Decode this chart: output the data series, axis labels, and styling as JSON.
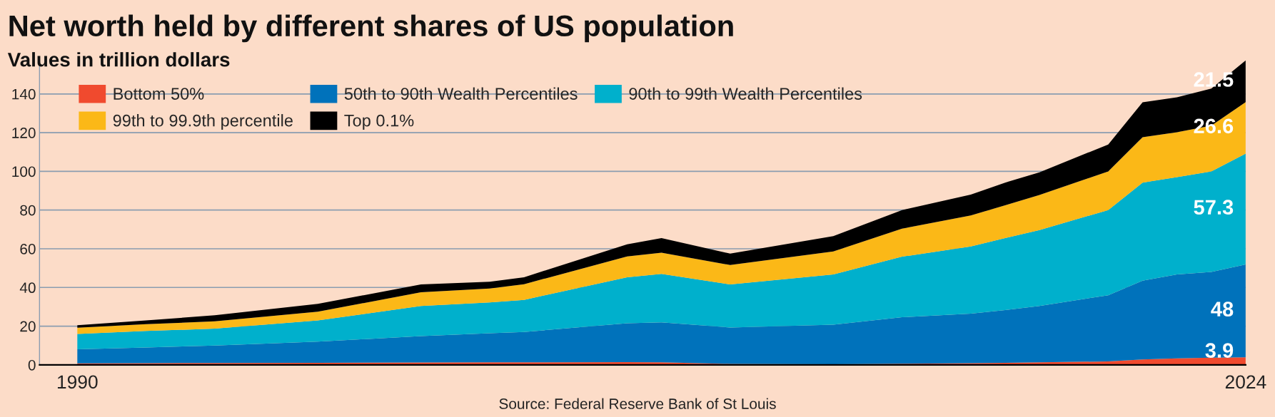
{
  "chart_data": {
    "type": "area",
    "stacked": true,
    "title": "Net worth held by different shares of US population",
    "subtitle": "Values in trillion dollars",
    "x": [
      1990,
      1992,
      1994,
      1997,
      2000,
      2002,
      2003,
      2006,
      2007,
      2009,
      2012,
      2014,
      2016,
      2017,
      2018,
      2020,
      2021,
      2022,
      2023,
      2024
    ],
    "series": [
      {
        "name": "Bottom 50%",
        "color": "#f04a2e",
        "values": [
          0.8,
          0.9,
          1.0,
          1.1,
          1.2,
          1.3,
          1.3,
          1.4,
          1.3,
          0.5,
          0.3,
          0.6,
          0.9,
          1.1,
          1.3,
          1.8,
          2.8,
          3.4,
          3.7,
          3.9
        ],
        "value_labels": [
          null,
          null,
          null,
          null,
          null,
          null,
          null,
          null,
          null,
          null,
          null,
          null,
          null,
          null,
          null,
          null,
          null,
          null,
          null,
          "3.9"
        ]
      },
      {
        "name": "50th to 90th Wealth Percentiles",
        "color": "#0072bb",
        "values": [
          7.3,
          8.1,
          9.0,
          10.9,
          13.7,
          15.0,
          15.7,
          20.1,
          20.7,
          18.8,
          20.5,
          24.0,
          25.6,
          27.2,
          29.1,
          34.2,
          40.7,
          43.3,
          44.3,
          48
        ],
        "value_labels": [
          null,
          null,
          null,
          null,
          null,
          null,
          null,
          null,
          null,
          null,
          null,
          null,
          null,
          null,
          null,
          null,
          null,
          null,
          null,
          "48"
        ]
      },
      {
        "name": "90th to 99th Wealth Percentiles",
        "color": "#00b0cc",
        "values": [
          7.9,
          8.5,
          8.7,
          11.0,
          15.5,
          16.0,
          16.6,
          23.8,
          25.0,
          22.3,
          25.9,
          31.3,
          34.7,
          37.2,
          39.3,
          44.0,
          50.7,
          50.3,
          52.0,
          57.3
        ],
        "value_labels": [
          null,
          null,
          null,
          null,
          null,
          null,
          null,
          null,
          null,
          null,
          null,
          null,
          null,
          null,
          null,
          null,
          null,
          null,
          null,
          "57.3"
        ]
      },
      {
        "name": "99th to 99.9th percentile",
        "color": "#fbb817",
        "values": [
          3.2,
          3.5,
          3.8,
          4.5,
          7.1,
          7.2,
          8.1,
          10.7,
          11.0,
          10.0,
          11.9,
          14.5,
          16.0,
          17.0,
          18.1,
          20.0,
          23.4,
          23.2,
          23.6,
          26.6
        ],
        "value_labels": [
          null,
          null,
          null,
          null,
          null,
          null,
          null,
          null,
          null,
          null,
          null,
          null,
          null,
          null,
          null,
          null,
          null,
          null,
          null,
          "26.6"
        ]
      },
      {
        "name": "Top 0.1%",
        "color": "#000000",
        "values": [
          1.3,
          2.0,
          3.1,
          4.0,
          4.1,
          3.5,
          3.6,
          6.3,
          7.5,
          5.9,
          7.9,
          9.6,
          10.8,
          11.7,
          11.7,
          13.9,
          18.1,
          18.1,
          19.2,
          21.5
        ],
        "value_labels": [
          null,
          null,
          null,
          null,
          null,
          null,
          null,
          null,
          null,
          null,
          null,
          null,
          null,
          null,
          null,
          null,
          null,
          null,
          null,
          "21.5"
        ]
      }
    ],
    "xlim": [
      1988.9,
      2024
    ],
    "xticks": [
      1990,
      2024
    ],
    "ylim": [
      0,
      157.3
    ],
    "yticks": [
      0,
      20,
      40,
      60,
      80,
      100,
      120,
      140
    ],
    "grid": "y",
    "legend": "top left",
    "annotations": [
      "Source: Federal Reserve Bank of St Louis"
    ]
  }
}
